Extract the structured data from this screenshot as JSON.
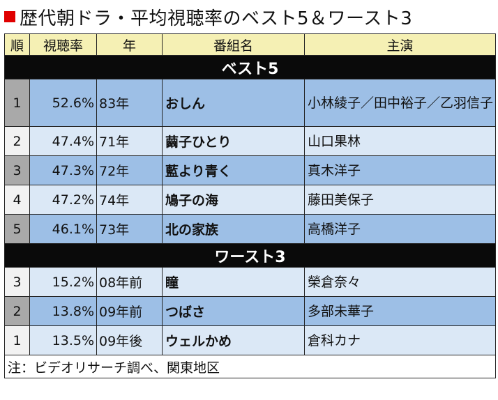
{
  "title": "歴代朝ドラ・平均視聴率のベスト5＆ワースト3",
  "title_marker_color": "#e00000",
  "headers": [
    "順",
    "視聴率",
    "年",
    "番組名",
    "主演"
  ],
  "sections": {
    "best": {
      "label": "ベスト5",
      "rows": [
        {
          "rank": "1",
          "rating": "52.6%",
          "year": "83年",
          "program": "おしん",
          "cast": "小林綾子／田中裕子／乙羽信子"
        },
        {
          "rank": "2",
          "rating": "47.4%",
          "year": "71年",
          "program": "繭子ひとり",
          "cast": "山口果林"
        },
        {
          "rank": "3",
          "rating": "47.3%",
          "year": "72年",
          "program": "藍より青く",
          "cast": "真木洋子"
        },
        {
          "rank": "4",
          "rating": "47.2%",
          "year": "74年",
          "program": "鳩子の海",
          "cast": "藤田美保子"
        },
        {
          "rank": "5",
          "rating": "46.1%",
          "year": "73年",
          "program": "北の家族",
          "cast": "高橋洋子"
        }
      ]
    },
    "worst": {
      "label": "ワースト3",
      "rows": [
        {
          "rank": "3",
          "rating": "15.2%",
          "year": "08年前",
          "program": "瞳",
          "cast": "榮倉奈々"
        },
        {
          "rank": "2",
          "rating": "13.8%",
          "year": "09年前",
          "program": "つばさ",
          "cast": "多部未華子"
        },
        {
          "rank": "1",
          "rating": "13.5%",
          "year": "09年後",
          "program": "ウェルかめ",
          "cast": "倉科カナ"
        }
      ]
    }
  },
  "note": "注：ビデオリサーチ調べ、関東地区",
  "colors": {
    "header_bg": "#f5f0b4",
    "section_bg": "#0a0a0a",
    "row_dark": "#9dbfe6",
    "row_light": "#dbe8f6"
  }
}
